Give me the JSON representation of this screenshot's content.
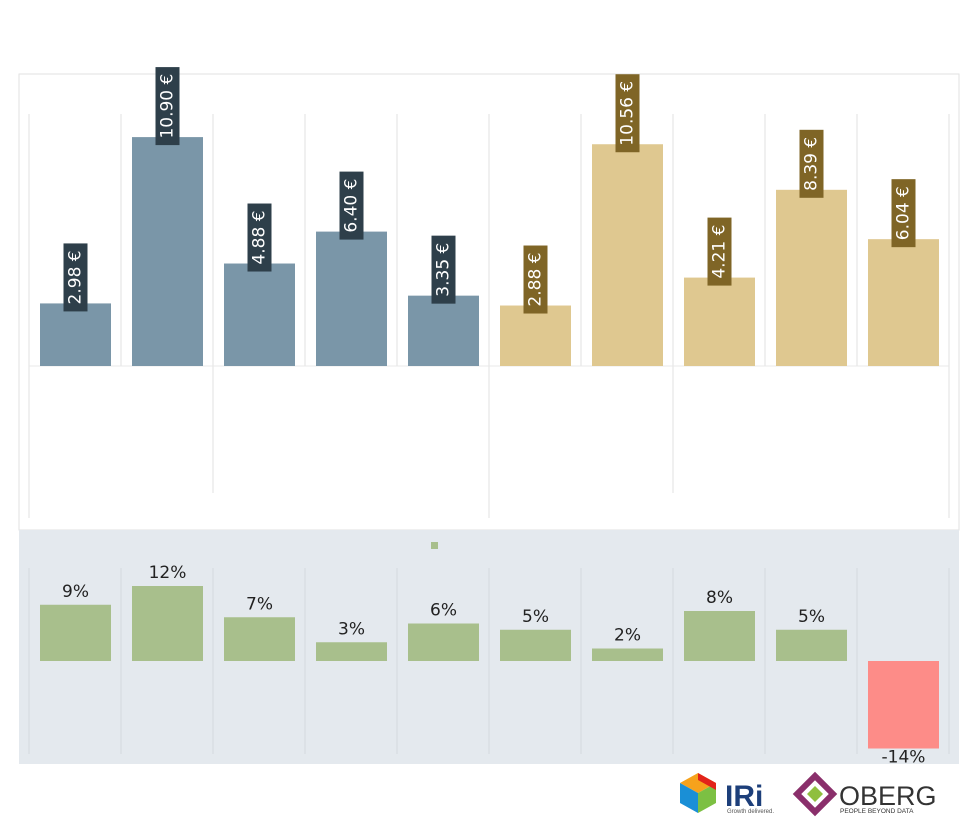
{
  "chart_data": [
    {
      "type": "bar",
      "series": [
        {
          "values": [
            2.98,
            10.9,
            4.88,
            6.4,
            3.35
          ],
          "labels": [
            "2.98 €",
            "10.90 €",
            "4.88 €",
            "6.40 €",
            "3.35 €"
          ],
          "color": "#7a96a8",
          "label_bg": "#2e3f4a"
        },
        {
          "values": [
            2.88,
            10.56,
            4.21,
            8.39,
            6.04
          ],
          "labels": [
            "2.88 €",
            "10.56 €",
            "4.21 €",
            "8.39 €",
            "6.04 €"
          ],
          "color": "#dfc890",
          "label_bg": "#7f6526"
        }
      ],
      "ylim": [
        0,
        12
      ],
      "grid": "vertical"
    },
    {
      "type": "bar",
      "values": [
        9,
        12,
        7,
        3,
        6,
        5,
        2,
        8,
        5,
        -14
      ],
      "labels": [
        "9%",
        "12%",
        "7%",
        "3%",
        "6%",
        "5%",
        "2%",
        "8%",
        "5%",
        "-14%"
      ],
      "positive_color": "#a8bf8c",
      "negative_color": "#fd8c88",
      "background": "#e4e9ee",
      "ylim": [
        -16,
        14
      ]
    }
  ],
  "logos": {
    "iri": {
      "name": "IRi",
      "tagline": "Growth delivered.",
      "icon": "cube-icon"
    },
    "oberg": {
      "name": "OBERG",
      "tagline": "PEOPLE BEYOND DATA",
      "icon": "diamond-icon"
    }
  }
}
